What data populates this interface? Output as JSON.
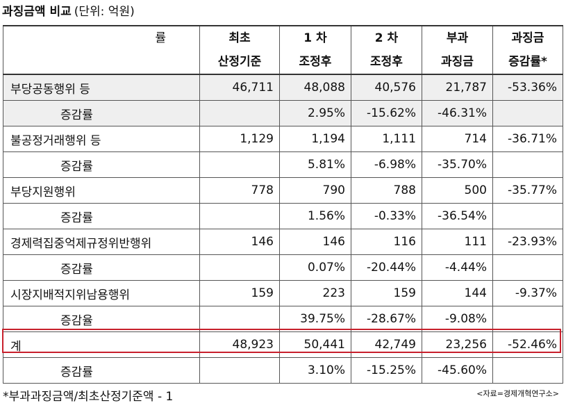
{
  "title": "과징금액 비교",
  "unit": "(단위: 억원)",
  "headers": {
    "corner_mark": "률",
    "columns": [
      {
        "line1": "최초",
        "line2": "산정기준"
      },
      {
        "line1": "1 차",
        "line2": "조정후"
      },
      {
        "line1": "2 차",
        "line2": "조정후"
      },
      {
        "line1": "부과",
        "line2": "과징금"
      },
      {
        "line1": "과징금",
        "line2": "증감률*"
      }
    ]
  },
  "rows": [
    {
      "name": "부당공동행위 등",
      "values": [
        "46,711",
        "48,088",
        "40,576",
        "21,787",
        "-53.36%"
      ],
      "sub_label": "증감률",
      "sub_values": [
        "",
        "2.95%",
        "-15.62%",
        "-46.31%",
        ""
      ]
    },
    {
      "name": "불공정거래행위 등",
      "values": [
        "1,129",
        "1,194",
        "1,111",
        "714",
        "-36.71%"
      ],
      "sub_label": "증감률",
      "sub_values": [
        "",
        "5.81%",
        "-6.98%",
        "-35.70%",
        ""
      ]
    },
    {
      "name": "부당지원행위",
      "values": [
        "778",
        "790",
        "788",
        "500",
        "-35.77%"
      ],
      "sub_label": "증감률",
      "sub_values": [
        "",
        "1.56%",
        "-0.33%",
        "-36.54%",
        ""
      ]
    },
    {
      "name": "경제력집중억제규정위반행위",
      "values": [
        "146",
        "146",
        "116",
        "111",
        "-23.93%"
      ],
      "sub_label": "증감률",
      "sub_values": [
        "",
        "0.07%",
        "-20.44%",
        "-4.44%",
        ""
      ]
    },
    {
      "name": "시장지배적지위남용행위",
      "values": [
        "159",
        "223",
        "159",
        "144",
        "-9.37%"
      ],
      "sub_label": "증감율",
      "sub_values": [
        "",
        "39.75%",
        "-28.67%",
        "-9.08%",
        ""
      ]
    },
    {
      "name": "계",
      "values": [
        "48,923",
        "50,441",
        "42,749",
        "23,256",
        "-52.46%"
      ],
      "sub_label": "증감률",
      "sub_values": [
        "",
        "3.10%",
        "-15.25%",
        "-45.60%",
        ""
      ]
    }
  ],
  "footnote": "*부과과징금액/최초산정기준액 - 1",
  "source": "<자료=경제개혁연구소>",
  "highlight_color": "#c8202c"
}
